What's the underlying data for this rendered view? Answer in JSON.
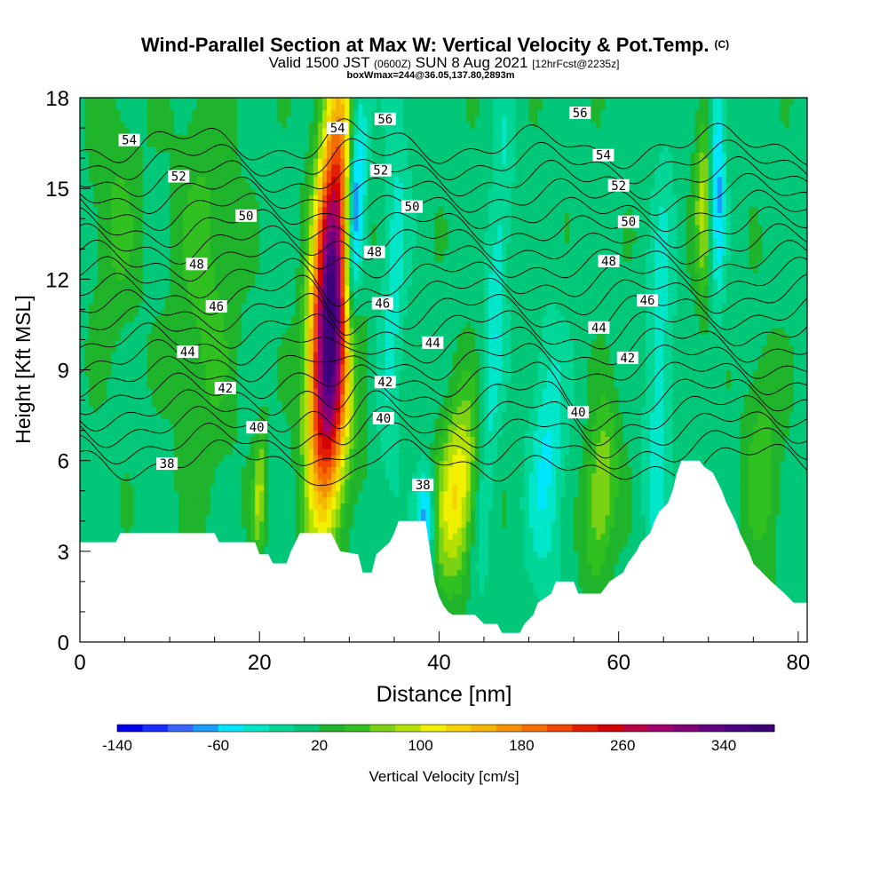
{
  "chart_data": {
    "type": "heatmap",
    "title": "Wind-Parallel Section at Max W: Vertical Velocity & Pot.Temp.",
    "title_mark": "(C)",
    "subtitle": {
      "valid": "Valid 1500 JST",
      "utc": "(0600Z)",
      "date": "SUN 8 Aug 2021",
      "forecast": "[12hrFcst@2235z]"
    },
    "box_info": "boxWmax=244@36.05,137.80,2893m",
    "xlabel": "Distance [nm]",
    "ylabel": "Height [Kft MSL]",
    "xlim": [
      0,
      81
    ],
    "ylim": [
      0,
      18
    ],
    "x_ticks": [
      0,
      20,
      40,
      60,
      80
    ],
    "y_ticks": [
      0,
      3,
      6,
      9,
      12,
      15,
      18
    ],
    "colorbar": {
      "label": "Vertical Velocity [cm/s]",
      "range": [
        -140,
        380
      ],
      "step": 20,
      "tick_labels": [
        -140,
        -60,
        20,
        100,
        180,
        260,
        340
      ],
      "colors": [
        "#0000ee",
        "#1a2cff",
        "#3a64ff",
        "#1a9cff",
        "#00e6ff",
        "#00e6c8",
        "#00d696",
        "#00c878",
        "#1fb42b",
        "#30c020",
        "#7bd214",
        "#b4e100",
        "#f0f000",
        "#f5d200",
        "#f5b400",
        "#f59100",
        "#f56e00",
        "#f04600",
        "#e11e00",
        "#d20000",
        "#b90046",
        "#a0006e",
        "#820078",
        "#640082",
        "#4b0082",
        "#3c0078"
      ]
    },
    "terrain_kft": [
      [
        0,
        3.3
      ],
      [
        4,
        3.3
      ],
      [
        4.5,
        3.6
      ],
      [
        15,
        3.6
      ],
      [
        15.5,
        3.3
      ],
      [
        19.5,
        3.3
      ],
      [
        20,
        2.9
      ],
      [
        21,
        2.9
      ],
      [
        21.5,
        2.6
      ],
      [
        23,
        2.6
      ],
      [
        23.5,
        3.0
      ],
      [
        24,
        3.3
      ],
      [
        24.5,
        3.6
      ],
      [
        28,
        3.6
      ],
      [
        28.5,
        3.3
      ],
      [
        29,
        3.0
      ],
      [
        31,
        2.9
      ],
      [
        31.5,
        2.3
      ],
      [
        32.5,
        2.3
      ],
      [
        33,
        2.9
      ],
      [
        34.5,
        3.3
      ],
      [
        35,
        3.6
      ],
      [
        35.5,
        4.0
      ],
      [
        38.5,
        4.0
      ],
      [
        39,
        3.0
      ],
      [
        39.5,
        2.0
      ],
      [
        40,
        1.5
      ],
      [
        40.5,
        1.2
      ],
      [
        41,
        1.0
      ],
      [
        41.5,
        0.9
      ],
      [
        44,
        0.9
      ],
      [
        45,
        0.6
      ],
      [
        46.5,
        0.6
      ],
      [
        47,
        0.3
      ],
      [
        49,
        0.3
      ],
      [
        49.5,
        0.6
      ],
      [
        50.5,
        0.9
      ],
      [
        51,
        1.3
      ],
      [
        52.5,
        1.6
      ],
      [
        53,
        2.0
      ],
      [
        55,
        2.0
      ],
      [
        55.5,
        1.6
      ],
      [
        58,
        1.6
      ],
      [
        59,
        2.0
      ],
      [
        60.5,
        2.3
      ],
      [
        61,
        2.6
      ],
      [
        62,
        3.0
      ],
      [
        62.5,
        3.3
      ],
      [
        63.5,
        3.6
      ],
      [
        64,
        4.0
      ],
      [
        64.5,
        4.3
      ],
      [
        65.5,
        4.6
      ],
      [
        66,
        5.0
      ],
      [
        66.5,
        5.6
      ],
      [
        67,
        6.0
      ],
      [
        69,
        6.0
      ],
      [
        69.5,
        5.8
      ],
      [
        70.5,
        5.6
      ],
      [
        71,
        5.3
      ],
      [
        71.5,
        5.0
      ],
      [
        72,
        4.6
      ],
      [
        72.5,
        4.3
      ],
      [
        73,
        4.0
      ],
      [
        73.5,
        3.6
      ],
      [
        74,
        3.3
      ],
      [
        74.5,
        3.0
      ],
      [
        75,
        2.6
      ],
      [
        76,
        2.3
      ],
      [
        77,
        2.0
      ],
      [
        78.5,
        1.6
      ],
      [
        79.5,
        1.3
      ],
      [
        81,
        1.3
      ]
    ],
    "w_features": [
      {
        "x": 28.0,
        "z": 12.0,
        "sx": 1.4,
        "sz": 4.5,
        "w": 300,
        "tilt": 0.15
      },
      {
        "x": 28.2,
        "z": 8.5,
        "sx": 1.7,
        "sz": 3.0,
        "w": 130,
        "tilt": 0.1
      },
      {
        "x": 30.5,
        "z": 14.0,
        "sx": 0.8,
        "sz": 3.0,
        "w": -150,
        "tilt": 0.12
      },
      {
        "x": 38.5,
        "z": 4.0,
        "sx": 0.7,
        "sz": 1.2,
        "w": -90,
        "tilt": 0.0
      },
      {
        "x": 42.0,
        "z": 5.0,
        "sx": 1.6,
        "sz": 2.2,
        "w": 110,
        "tilt": 0.25
      },
      {
        "x": 20.0,
        "z": 5.0,
        "sx": 0.5,
        "sz": 1.5,
        "w": 70,
        "tilt": 0.1
      },
      {
        "x": 58.0,
        "z": 5.0,
        "sx": 1.2,
        "sz": 2.0,
        "w": 75,
        "tilt": 0.2
      },
      {
        "x": 69.5,
        "z": 14.5,
        "sx": 0.7,
        "sz": 2.2,
        "w": 75,
        "tilt": 0.0
      },
      {
        "x": 71.0,
        "z": 15.5,
        "sx": 0.6,
        "sz": 3.0,
        "w": -80,
        "tilt": 0.0
      },
      {
        "x": 46.0,
        "z": 10.0,
        "sx": 0.9,
        "sz": 6.0,
        "w": -50,
        "tilt": 0.2
      },
      {
        "x": 52.0,
        "z": 6.0,
        "sx": 1.4,
        "sz": 3.0,
        "w": -55,
        "tilt": 0.1
      },
      {
        "x": 64.5,
        "z": 9.0,
        "sx": 1.0,
        "sz": 5.0,
        "w": -45,
        "tilt": 0.1
      },
      {
        "x": 35.0,
        "z": 12.0,
        "sx": 1.0,
        "sz": 5.0,
        "w": -40,
        "tilt": 0.1
      },
      {
        "x": 14.0,
        "z": 12.0,
        "sx": 2.5,
        "sz": 5.0,
        "w": 35,
        "tilt": 0.0
      },
      {
        "x": 76.0,
        "z": 6.0,
        "sx": 1.5,
        "sz": 2.5,
        "w": 40,
        "tilt": 0.0
      },
      {
        "x": 4.0,
        "z": 14.0,
        "sx": 2.0,
        "sz": 3.0,
        "w": 30,
        "tilt": 0.0
      }
    ],
    "theta_contours": [
      38,
      39,
      40,
      41,
      42,
      43,
      44,
      45,
      46,
      47,
      48,
      49,
      50,
      51,
      52,
      53,
      54,
      55,
      56,
      57
    ],
    "theta_labels": [
      {
        "text": "54",
        "x": 5.5,
        "z": 16.6
      },
      {
        "text": "52",
        "x": 11.0,
        "z": 15.4
      },
      {
        "text": "50",
        "x": 18.5,
        "z": 14.1
      },
      {
        "text": "48",
        "x": 13.0,
        "z": 12.5
      },
      {
        "text": "46",
        "x": 15.2,
        "z": 11.1
      },
      {
        "text": "44",
        "x": 12.0,
        "z": 9.6
      },
      {
        "text": "42",
        "x": 16.2,
        "z": 8.4
      },
      {
        "text": "40",
        "x": 19.7,
        "z": 7.1
      },
      {
        "text": "38",
        "x": 9.7,
        "z": 5.9
      },
      {
        "text": "54",
        "x": 28.7,
        "z": 17.0
      },
      {
        "text": "56",
        "x": 34.0,
        "z": 17.3
      },
      {
        "text": "52",
        "x": 33.5,
        "z": 15.6
      },
      {
        "text": "50",
        "x": 37.0,
        "z": 14.4
      },
      {
        "text": "48",
        "x": 32.8,
        "z": 12.9
      },
      {
        "text": "46",
        "x": 33.7,
        "z": 11.2
      },
      {
        "text": "44",
        "x": 39.3,
        "z": 9.9
      },
      {
        "text": "42",
        "x": 34.0,
        "z": 8.6
      },
      {
        "text": "40",
        "x": 33.8,
        "z": 7.4
      },
      {
        "text": "38",
        "x": 38.2,
        "z": 5.2
      },
      {
        "text": "56",
        "x": 55.7,
        "z": 17.5
      },
      {
        "text": "54",
        "x": 58.3,
        "z": 16.1
      },
      {
        "text": "52",
        "x": 60.0,
        "z": 15.1
      },
      {
        "text": "50",
        "x": 61.1,
        "z": 13.9
      },
      {
        "text": "48",
        "x": 58.9,
        "z": 12.6
      },
      {
        "text": "46",
        "x": 63.2,
        "z": 11.3
      },
      {
        "text": "44",
        "x": 57.8,
        "z": 10.4
      },
      {
        "text": "42",
        "x": 61.0,
        "z": 9.4
      },
      {
        "text": "40",
        "x": 55.5,
        "z": 7.6
      }
    ]
  }
}
